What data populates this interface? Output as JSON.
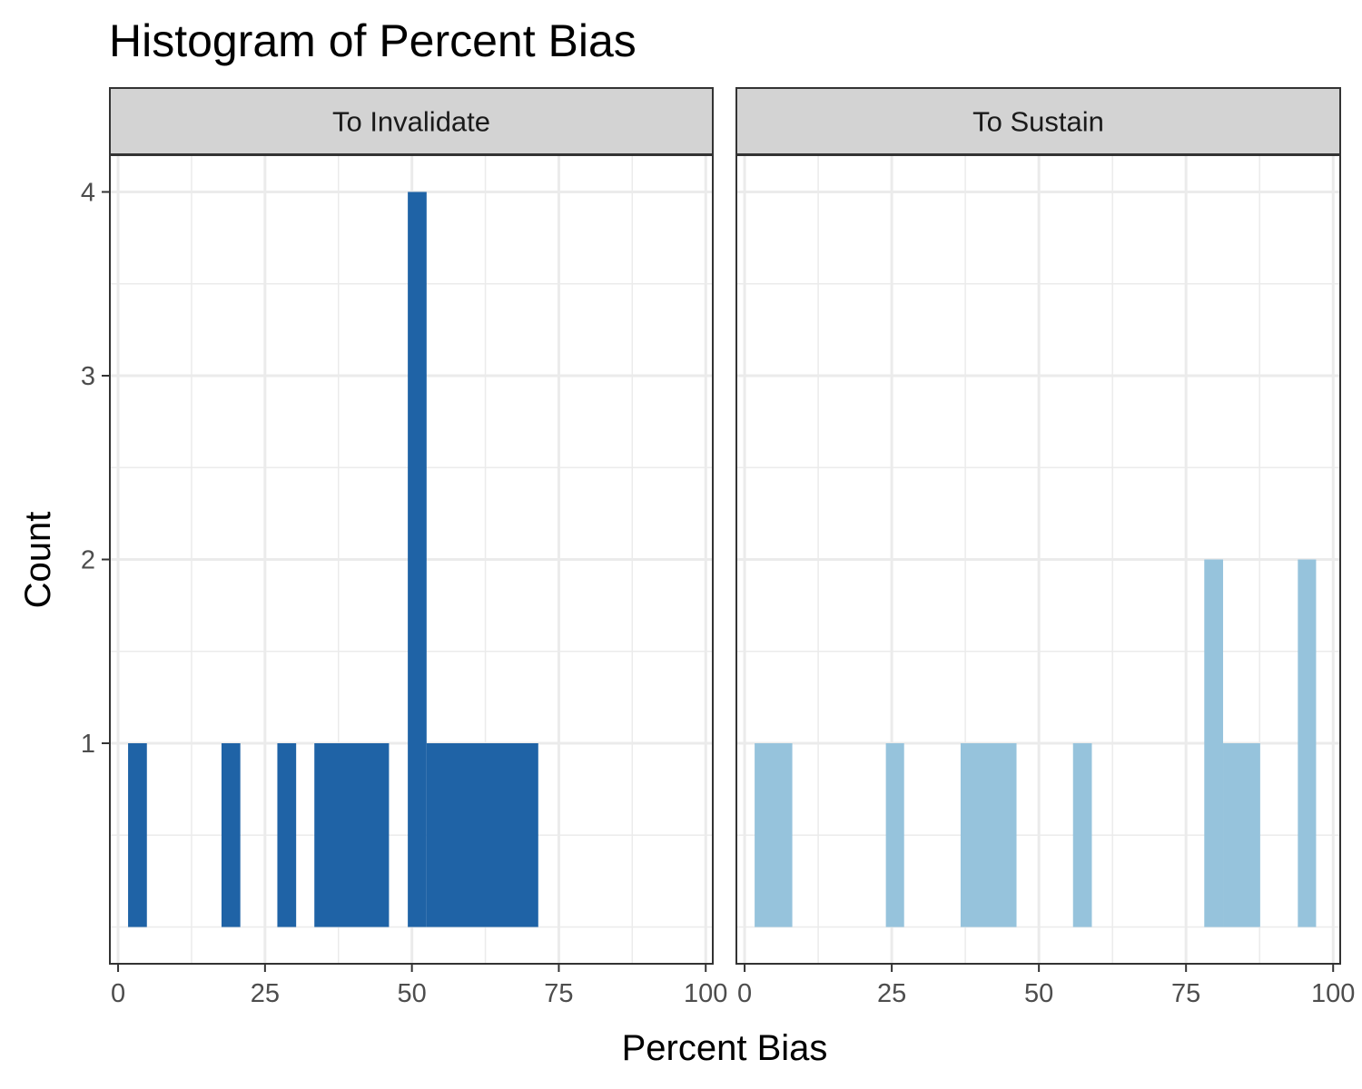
{
  "chart_data": {
    "type": "bar",
    "title": "Histogram of Percent Bias",
    "xlabel": "Percent Bias",
    "ylabel": "Count",
    "xlim": [
      -1.4,
      101.2
    ],
    "ylim": [
      -0.2,
      4.2
    ],
    "x_ticks": [
      "0",
      "25",
      "50",
      "75",
      "100"
    ],
    "y_ticks": [
      "1",
      "2",
      "3",
      "4"
    ],
    "grid": true,
    "legend": "none",
    "panels": [
      {
        "label": "To Invalidate",
        "color": "#1f63a6",
        "bins": [
          {
            "x0": 1.7,
            "x1": 4.9,
            "count": 1
          },
          {
            "x0": 17.6,
            "x1": 20.8,
            "count": 1
          },
          {
            "x0": 27.1,
            "x1": 30.3,
            "count": 1
          },
          {
            "x0": 33.4,
            "x1": 46.1,
            "count": 1
          },
          {
            "x0": 49.3,
            "x1": 52.5,
            "count": 4
          },
          {
            "x0": 52.5,
            "x1": 71.5,
            "count": 1
          }
        ]
      },
      {
        "label": "To Sustain",
        "color": "#96c3dc",
        "bins": [
          {
            "x0": 1.7,
            "x1": 8.1,
            "count": 1
          },
          {
            "x0": 24.0,
            "x1": 27.1,
            "count": 1
          },
          {
            "x0": 36.7,
            "x1": 46.2,
            "count": 1
          },
          {
            "x0": 55.8,
            "x1": 59.0,
            "count": 1
          },
          {
            "x0": 78.1,
            "x1": 81.3,
            "count": 2
          },
          {
            "x0": 81.3,
            "x1": 87.6,
            "count": 1
          },
          {
            "x0": 94.0,
            "x1": 97.1,
            "count": 2
          }
        ]
      }
    ]
  }
}
